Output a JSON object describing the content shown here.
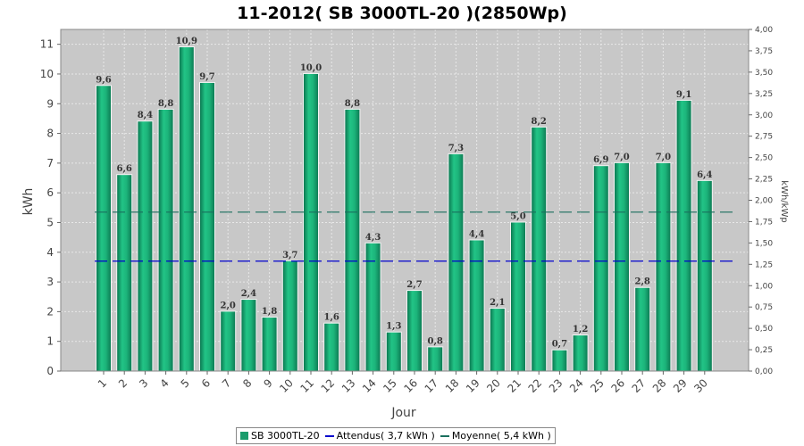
{
  "chart_data": {
    "type": "bar",
    "title": "11-2012( SB 3000TL-20 )(2850Wp)",
    "xlabel": "Jour",
    "ylabel": "kWh",
    "y2label": "kWh/kWp",
    "ylim": [
      0,
      11.5
    ],
    "y2lim": [
      0,
      4.0
    ],
    "yticks": [
      0,
      1,
      2,
      3,
      4,
      5,
      6,
      7,
      8,
      9,
      10,
      11
    ],
    "y2ticks": [
      "0,00",
      "0,25",
      "0,50",
      "0,75",
      "1,00",
      "1,25",
      "1,50",
      "1,75",
      "2,00",
      "2,25",
      "2,50",
      "2,75",
      "3,00",
      "3,25",
      "3,50",
      "3,75",
      "4,00"
    ],
    "categories": [
      "1",
      "2",
      "3",
      "4",
      "5",
      "6",
      "7",
      "8",
      "9",
      "10",
      "11",
      "12",
      "13",
      "14",
      "15",
      "16",
      "17",
      "18",
      "19",
      "20",
      "21",
      "22",
      "23",
      "24",
      "25",
      "26",
      "27",
      "28",
      "29",
      "30"
    ],
    "series": [
      {
        "name": "SB 3000TL-20",
        "color": "#1a9c6c",
        "values": [
          9.6,
          6.6,
          8.4,
          8.8,
          10.9,
          9.7,
          2.0,
          2.4,
          1.8,
          3.7,
          10.0,
          1.6,
          8.8,
          4.3,
          1.3,
          2.7,
          0.8,
          7.3,
          4.4,
          2.1,
          5.0,
          8.2,
          0.7,
          1.2,
          6.9,
          7.0,
          2.8,
          7.0,
          9.1,
          6.4
        ],
        "labels": [
          "9,6",
          "6,6",
          "8,4",
          "8,8",
          "10,9",
          "9,7",
          "2,0",
          "2,4",
          "1,8",
          "3,7",
          "10,0",
          "1,6",
          "8,8",
          "4,3",
          "1,3",
          "2,7",
          "0,8",
          "7,3",
          "4,4",
          "2,1",
          "5,0",
          "8,2",
          "0,7",
          "1,2",
          "6,9",
          "7,0",
          "2,8",
          "7,0",
          "9,1",
          "6,4"
        ]
      }
    ],
    "reference_lines": [
      {
        "name": "Attendus( 3,7 kWh )",
        "value": 3.7,
        "color": "#0000cc",
        "style": "dashed"
      },
      {
        "name": "Moyenne( 5,4 kWh )",
        "value": 5.35,
        "color": "#1a6f5e",
        "style": "dashed"
      }
    ],
    "grid": true,
    "legend_position": "bottom",
    "colors": {
      "plot_bg": "#c8c8c8",
      "grid": "#e8e8e8"
    }
  },
  "legend": {
    "bar_label": "SB 3000TL-20",
    "expected_label": "Attendus( 3,7 kWh )",
    "average_label": "Moyenne( 5,4 kWh )"
  }
}
